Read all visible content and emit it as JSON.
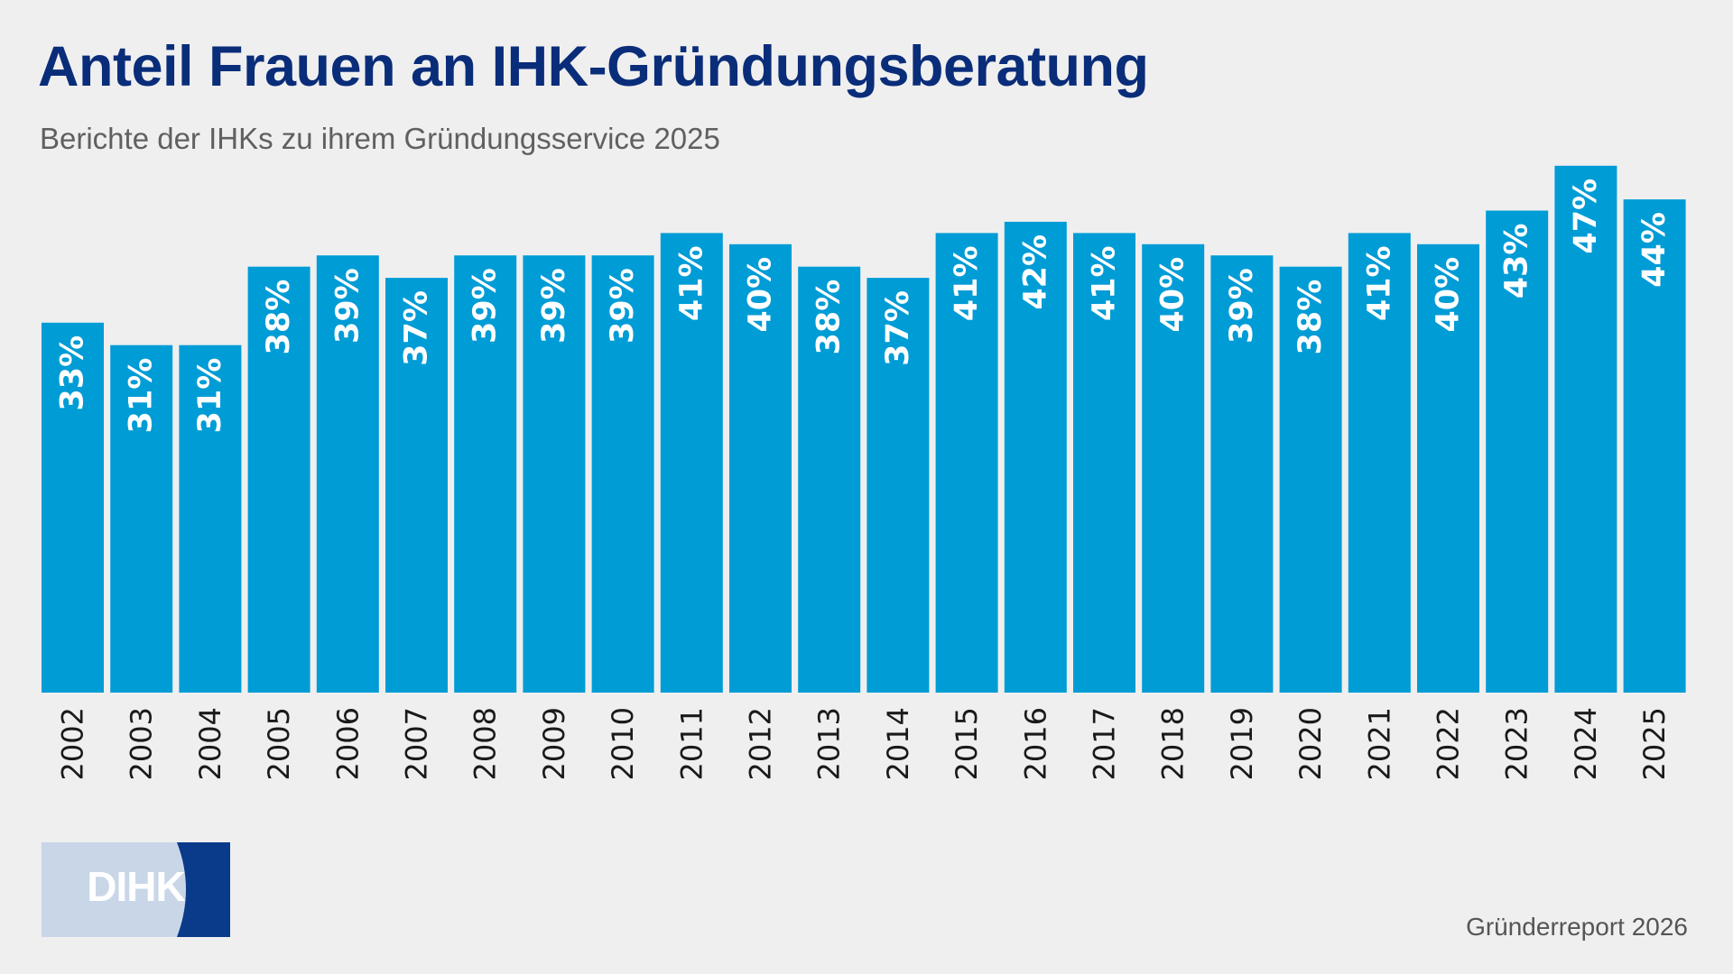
{
  "header": {
    "title": "Anteil Frauen an IHK-Gründungsberatung",
    "subtitle": "Berichte der IHKs zu ihrem Gründungsservice 2025"
  },
  "footer": {
    "logo_text": "DIHK",
    "source": "Gründerreport 2026"
  },
  "colors": {
    "bar": "#009cd6",
    "title": "#0a2d7a",
    "background": "#efefef",
    "logo_dark": "#0a3a8a",
    "logo_light": "#c9d6e8"
  },
  "chart_data": {
    "type": "bar",
    "categories": [
      "2002",
      "2003",
      "2004",
      "2005",
      "2006",
      "2007",
      "2008",
      "2009",
      "2010",
      "2011",
      "2012",
      "2013",
      "2014",
      "2015",
      "2016",
      "2017",
      "2018",
      "2019",
      "2020",
      "2021",
      "2022",
      "2023",
      "2024",
      "2025"
    ],
    "values": [
      33,
      31,
      31,
      38,
      39,
      37,
      39,
      39,
      39,
      41,
      40,
      38,
      37,
      41,
      42,
      41,
      40,
      39,
      38,
      41,
      40,
      43,
      47,
      44
    ],
    "value_labels": [
      "33%",
      "31%",
      "31%",
      "38%",
      "39%",
      "37%",
      "39%",
      "39%",
      "39%",
      "41%",
      "40%",
      "38%",
      "37%",
      "41%",
      "42%",
      "41%",
      "40%",
      "39%",
      "38%",
      "41%",
      "40%",
      "43%",
      "47%",
      "44%"
    ],
    "title": "Anteil Frauen an IHK-Gründungsberatung",
    "subtitle": "Berichte der IHKs zu ihrem Gründungsservice 2025",
    "xlabel": "",
    "ylabel": "",
    "ylim": [
      0,
      100
    ],
    "grid": false,
    "legend": "none",
    "value_label_orientation": "vertical",
    "tick_label_orientation": "vertical"
  }
}
